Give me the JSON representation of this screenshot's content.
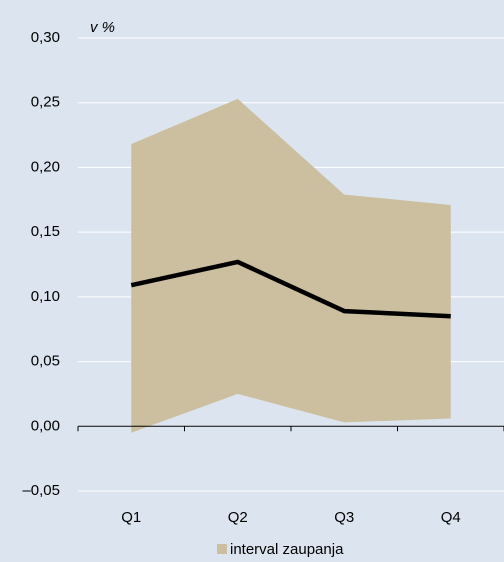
{
  "chart_data": {
    "type": "line",
    "y_axis_label": "v %",
    "categories": [
      "Q1",
      "Q2",
      "Q3",
      "Q4"
    ],
    "band": {
      "name": "interval zaupanja",
      "color": "#ccbf9f",
      "upper": [
        0.218,
        0.253,
        0.179,
        0.171
      ],
      "lower": [
        -0.005,
        0.025,
        0.003,
        0.006
      ]
    },
    "series": [
      {
        "color": "#000000",
        "values": [
          0.109,
          0.127,
          0.089,
          0.085
        ]
      }
    ],
    "ylim": [
      -0.05,
      0.3
    ],
    "yticks": [
      {
        "value": -0.05,
        "label": "–0,05"
      },
      {
        "value": 0,
        "label": "0,00"
      },
      {
        "value": 0.05,
        "label": "0,05"
      },
      {
        "value": 0.1,
        "label": "0,10"
      },
      {
        "value": 0.15,
        "label": "0,15"
      },
      {
        "value": 0.2,
        "label": "0,20"
      },
      {
        "value": 0.25,
        "label": "0,25"
      },
      {
        "value": 0.3,
        "label": "0,30"
      }
    ],
    "grid": true
  }
}
